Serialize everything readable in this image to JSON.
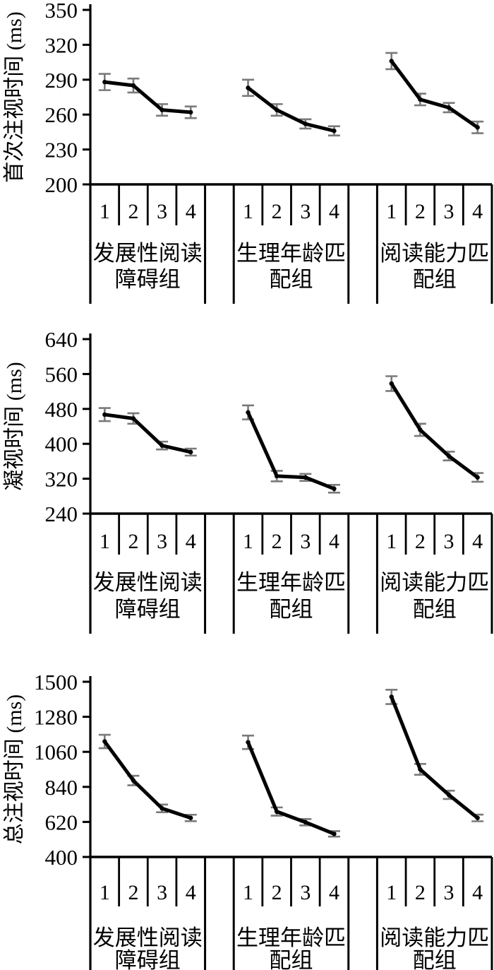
{
  "figure": {
    "background": "#ffffff",
    "line_color": "#000000",
    "error_bar_color": "#7a7a7a",
    "text_color": "#000000"
  },
  "chart_data": [
    {
      "type": "line",
      "title": "",
      "ylabel": "首次注视时间 (ms)",
      "xlabel": "",
      "ylim": [
        200,
        350
      ],
      "yticks": [
        200,
        230,
        260,
        290,
        320,
        350
      ],
      "grid": false,
      "legend": false,
      "x_tick_labels": [
        "1",
        "2",
        "3",
        "4"
      ],
      "groups": [
        {
          "name": "发展性阅读障碍组",
          "label_lines": [
            "发展性阅读",
            "障碍组"
          ],
          "values": [
            288,
            285,
            264,
            262
          ],
          "errors": [
            7,
            6,
            5,
            5
          ]
        },
        {
          "name": "生理年龄匹配组",
          "label_lines": [
            "生理年龄匹",
            "配组"
          ],
          "values": [
            283,
            264,
            252,
            246
          ],
          "errors": [
            7,
            5,
            4,
            4
          ]
        },
        {
          "name": "阅读能力匹配组",
          "label_lines": [
            "阅读能力匹",
            "配组"
          ],
          "values": [
            306,
            273,
            266,
            249
          ],
          "errors": [
            7,
            5,
            4,
            5
          ]
        }
      ]
    },
    {
      "type": "line",
      "title": "",
      "ylabel": "凝视时间 (ms)",
      "xlabel": "",
      "ylim": [
        240,
        640
      ],
      "yticks": [
        240,
        320,
        400,
        480,
        560,
        640
      ],
      "grid": false,
      "legend": false,
      "x_tick_labels": [
        "1",
        "2",
        "3",
        "4"
      ],
      "groups": [
        {
          "name": "发展性阅读障碍组",
          "label_lines": [
            "发展性阅读",
            "障碍组"
          ],
          "values": [
            467,
            458,
            396,
            381
          ],
          "errors": [
            15,
            12,
            9,
            8
          ]
        },
        {
          "name": "生理年龄匹配组",
          "label_lines": [
            "生理年龄匹",
            "配组"
          ],
          "values": [
            472,
            326,
            323,
            297
          ],
          "errors": [
            16,
            12,
            8,
            9
          ]
        },
        {
          "name": "阅读能力匹配组",
          "label_lines": [
            "阅读能力匹",
            "配组"
          ],
          "values": [
            538,
            432,
            372,
            323
          ],
          "errors": [
            17,
            14,
            10,
            10
          ]
        }
      ]
    },
    {
      "type": "line",
      "title": "",
      "ylabel": "总注视时间 (ms)",
      "xlabel": "",
      "ylim": [
        400,
        1500
      ],
      "yticks": [
        400,
        620,
        840,
        1060,
        1280,
        1500
      ],
      "grid": false,
      "legend": false,
      "x_tick_labels": [
        "1",
        "2",
        "3",
        "4"
      ],
      "groups": [
        {
          "name": "发展性阅读障碍组",
          "label_lines": [
            "发展性阅读",
            "障碍组"
          ],
          "values": [
            1125,
            880,
            705,
            645
          ],
          "errors": [
            42,
            30,
            24,
            20
          ]
        },
        {
          "name": "生理年龄匹配组",
          "label_lines": [
            "生理年龄匹",
            "配组"
          ],
          "values": [
            1120,
            685,
            618,
            545
          ],
          "errors": [
            42,
            26,
            20,
            17
          ]
        },
        {
          "name": "阅读能力匹配组",
          "label_lines": [
            "阅读能力匹",
            "配组"
          ],
          "values": [
            1405,
            950,
            790,
            645
          ],
          "errors": [
            45,
            34,
            26,
            21
          ]
        }
      ]
    }
  ]
}
